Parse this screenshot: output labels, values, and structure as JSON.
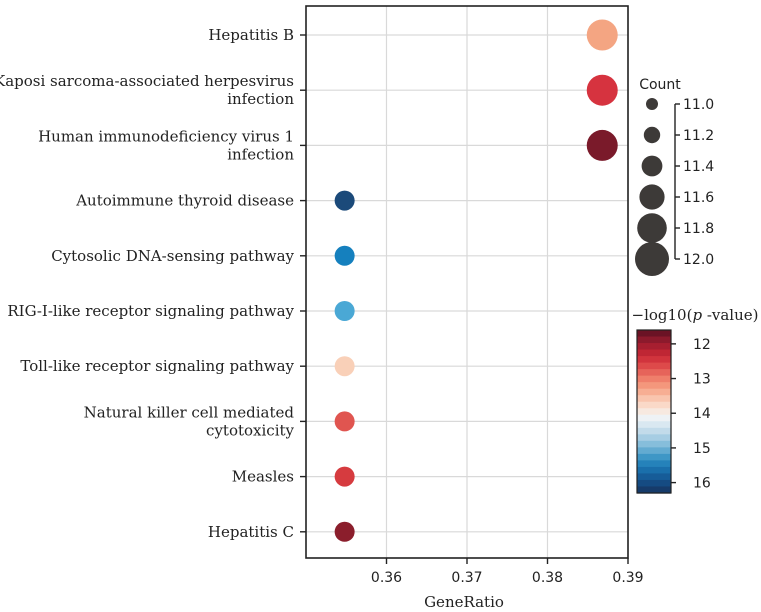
{
  "chart_data": {
    "type": "scatter",
    "title": "",
    "xlabel": "GeneRatio",
    "ylabel": "",
    "xlim": [
      0.35,
      0.39
    ],
    "x_ticks": [
      0.36,
      0.37,
      0.38,
      0.39
    ],
    "x_tick_labels": [
      "0.36",
      "0.37",
      "0.38",
      "0.39"
    ],
    "grid": true,
    "categories": [
      "Hepatitis B",
      "Kaposi sarcoma-associated herpesvirus infection",
      "Human immunodeficiency virus 1 infection",
      "Autoimmune thyroid disease",
      "Cytosolic DNA-sensing pathway",
      "RIG-I-like receptor signaling pathway",
      "Toll-like receptor signaling pathway",
      "Natural killer cell mediated cytotoxicity",
      "Measles",
      "Hepatitis C"
    ],
    "category_labels": [
      [
        "Hepatitis B"
      ],
      [
        "Kaposi sarcoma-associated herpesvirus",
        "infection"
      ],
      [
        "Human immunodeficiency virus 1",
        "infection"
      ],
      [
        "Autoimmune thyroid disease"
      ],
      [
        "Cytosolic DNA-sensing pathway"
      ],
      [
        "RIG-I-like receptor signaling pathway"
      ],
      [
        "Toll-like receptor signaling pathway"
      ],
      [
        "Natural killer cell mediated",
        "cytotoxicity"
      ],
      [
        "Measles"
      ],
      [
        "Hepatitis C"
      ]
    ],
    "points": [
      {
        "category": "Hepatitis B",
        "gene_ratio": 0.3868,
        "count": 12,
        "neg_log10_p": 13.0,
        "color": "#f4a582"
      },
      {
        "category": "Kaposi sarcoma-associated herpesvirus infection",
        "gene_ratio": 0.3868,
        "count": 12,
        "neg_log10_p": 12.2,
        "color": "#d6333f"
      },
      {
        "category": "Human immunodeficiency virus 1 infection",
        "gene_ratio": 0.3868,
        "count": 12,
        "neg_log10_p": 11.7,
        "color": "#7a1a2a"
      },
      {
        "category": "Autoimmune thyroid disease",
        "gene_ratio": 0.3548,
        "count": 11,
        "neg_log10_p": 16.0,
        "color": "#1b4a7a"
      },
      {
        "category": "Cytosolic DNA-sensing pathway",
        "gene_ratio": 0.3548,
        "count": 11,
        "neg_log10_p": 15.4,
        "color": "#1580be"
      },
      {
        "category": "RIG-I-like receptor signaling pathway",
        "gene_ratio": 0.3548,
        "count": 11,
        "neg_log10_p": 14.9,
        "color": "#4aa8d5"
      },
      {
        "category": "Toll-like receptor signaling pathway",
        "gene_ratio": 0.3548,
        "count": 11,
        "neg_log10_p": 13.3,
        "color": "#f9d0b8"
      },
      {
        "category": "Natural killer cell mediated cytotoxicity",
        "gene_ratio": 0.3548,
        "count": 11,
        "neg_log10_p": 12.4,
        "color": "#e05550"
      },
      {
        "category": "Measles",
        "gene_ratio": 0.3548,
        "count": 11,
        "neg_log10_p": 12.3,
        "color": "#d63b3f"
      },
      {
        "category": "Hepatitis C",
        "gene_ratio": 0.3548,
        "count": 11,
        "neg_log10_p": 11.8,
        "color": "#8b1e2c"
      }
    ],
    "size_legend": {
      "title": "Count",
      "values": [
        11.0,
        11.2,
        11.4,
        11.6,
        11.8,
        12.0
      ],
      "labels": [
        "11.0",
        "11.2",
        "11.4",
        "11.6",
        "11.8",
        "12.0"
      ],
      "marker_color": "#3d3a38"
    },
    "color_legend": {
      "title_prefix": "−log10(",
      "title_italic": "p",
      "title_suffix": " -value)",
      "ticks": [
        12,
        13,
        14,
        15,
        16
      ],
      "tick_labels": [
        "12",
        "13",
        "14",
        "15",
        "16"
      ],
      "range": [
        11.6,
        16.3
      ],
      "colors_top_to_bottom": [
        "#6b1325",
        "#8c1a2c",
        "#a71f30",
        "#bf2634",
        "#d1343d",
        "#dd4a4a",
        "#e6645a",
        "#ef7f6b",
        "#f4977c",
        "#f7ae93",
        "#f9c5ae",
        "#fad9c8",
        "#f7e9e0",
        "#eef2f5",
        "#d9e8f1",
        "#c2dbea",
        "#a6cde3",
        "#86bedb",
        "#63abd1",
        "#3f97c6",
        "#2582ba",
        "#1a6fab",
        "#165c98",
        "#154b82",
        "#163b6a"
      ]
    }
  }
}
